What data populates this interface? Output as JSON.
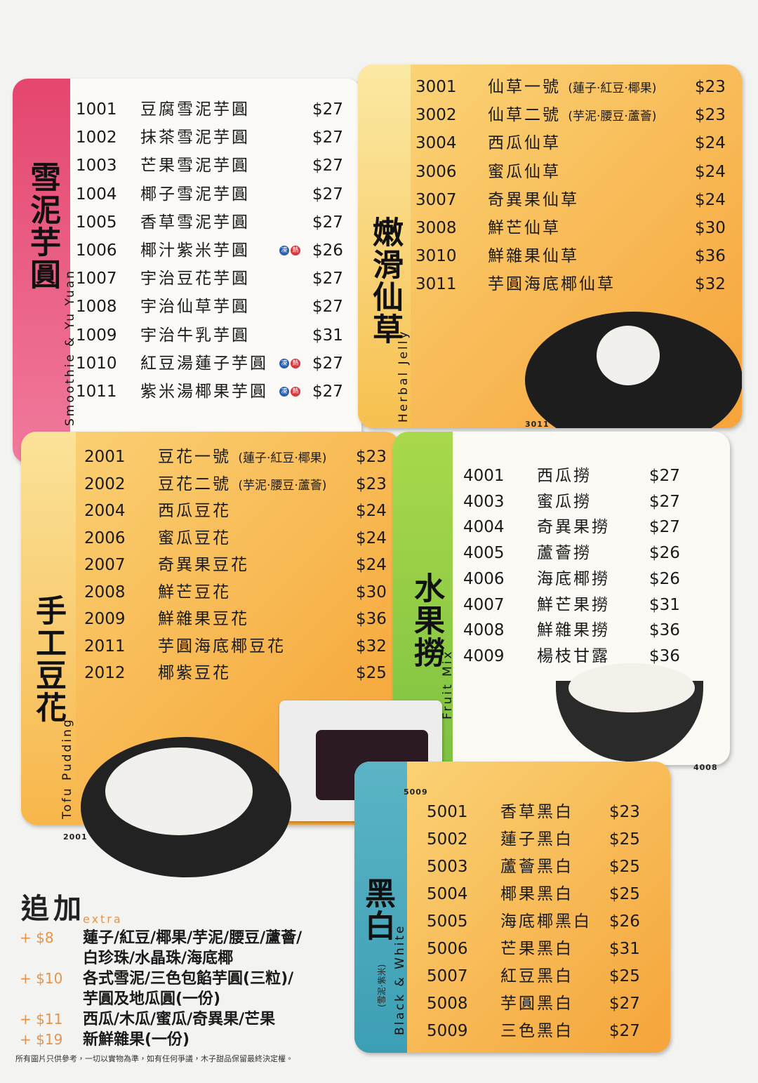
{
  "sections": [
    {
      "title": "雪泥芋圓",
      "title_en": "Smoothie & Yu Yuan",
      "items": [
        {
          "code": "1001",
          "name": "豆腐雪泥芋圓",
          "price": "$27"
        },
        {
          "code": "1002",
          "name": "抹茶雪泥芋圓",
          "price": "$27"
        },
        {
          "code": "1003",
          "name": "芒果雪泥芋圓",
          "price": "$27"
        },
        {
          "code": "1004",
          "name": "椰子雪泥芋圓",
          "price": "$27"
        },
        {
          "code": "1005",
          "name": "香草雪泥芋圓",
          "price": "$27"
        },
        {
          "code": "1006",
          "name": "椰汁紫米芋圓",
          "price": "$26",
          "badges": [
            "凍",
            "熱"
          ]
        },
        {
          "code": "1007",
          "name": "宇治豆花芋圓",
          "price": "$27"
        },
        {
          "code": "1008",
          "name": "宇治仙草芋圓",
          "price": "$27"
        },
        {
          "code": "1009",
          "name": "宇治牛乳芋圓",
          "price": "$31"
        },
        {
          "code": "1010",
          "name": "紅豆湯蓮子芋圓",
          "price": "$27",
          "badges": [
            "凍",
            "熱"
          ]
        },
        {
          "code": "1011",
          "name": "紫米湯椰果芋圓",
          "price": "$27",
          "badges": [
            "凍",
            "熱"
          ]
        }
      ]
    },
    {
      "title": "手工豆花",
      "title_en": "Tofu Pudding",
      "photo_labels": [
        "2001",
        "5009"
      ],
      "items": [
        {
          "code": "2001",
          "name": "豆花一號",
          "note": "(蓮子·紅豆·椰果)",
          "price": "$23"
        },
        {
          "code": "2002",
          "name": "豆花二號",
          "note": "(芋泥·腰豆·蘆薈)",
          "price": "$23"
        },
        {
          "code": "2004",
          "name": "西瓜豆花",
          "price": "$24"
        },
        {
          "code": "2006",
          "name": "蜜瓜豆花",
          "price": "$24"
        },
        {
          "code": "2007",
          "name": "奇異果豆花",
          "price": "$24"
        },
        {
          "code": "2008",
          "name": "鮮芒豆花",
          "price": "$30"
        },
        {
          "code": "2009",
          "name": "鮮雜果豆花",
          "price": "$36"
        },
        {
          "code": "2011",
          "name": "芋圓海底椰豆花",
          "price": "$32"
        },
        {
          "code": "2012",
          "name": "椰紫豆花",
          "price": "$25"
        }
      ]
    },
    {
      "title": "嫩滑仙草",
      "title_en": "Herbal Jelly",
      "photo_labels": [
        "3011"
      ],
      "items": [
        {
          "code": "3001",
          "name": "仙草一號",
          "note": "(蓮子·紅豆·椰果)",
          "price": "$23"
        },
        {
          "code": "3002",
          "name": "仙草二號",
          "note": "(芋泥·腰豆·蘆薈)",
          "price": "$23"
        },
        {
          "code": "3004",
          "name": "西瓜仙草",
          "price": "$24"
        },
        {
          "code": "3006",
          "name": "蜜瓜仙草",
          "price": "$24"
        },
        {
          "code": "3007",
          "name": "奇異果仙草",
          "price": "$24"
        },
        {
          "code": "3008",
          "name": "鮮芒仙草",
          "price": "$30"
        },
        {
          "code": "3010",
          "name": "鮮雜果仙草",
          "price": "$36"
        },
        {
          "code": "3011",
          "name": "芋圓海底椰仙草",
          "price": "$32"
        }
      ]
    },
    {
      "title": "水果撈",
      "title_en": "Fruit Mix",
      "photo_labels": [
        "4008"
      ],
      "items": [
        {
          "code": "4001",
          "name": "西瓜撈",
          "price": "$27"
        },
        {
          "code": "4003",
          "name": "蜜瓜撈",
          "price": "$27"
        },
        {
          "code": "4004",
          "name": "奇異果撈",
          "price": "$27"
        },
        {
          "code": "4005",
          "name": "蘆薈撈",
          "price": "$26"
        },
        {
          "code": "4006",
          "name": "海底椰撈",
          "price": "$26"
        },
        {
          "code": "4007",
          "name": "鮮芒果撈",
          "price": "$31"
        },
        {
          "code": "4008",
          "name": "鮮雜果撈",
          "price": "$36"
        },
        {
          "code": "4009",
          "name": "楊枝甘露",
          "price": "$36"
        }
      ]
    },
    {
      "title": "黑白",
      "title_en": "Black & White",
      "subtitle": "(雪泥·紫米)",
      "items": [
        {
          "code": "5001",
          "name": "香草黑白",
          "price": "$23"
        },
        {
          "code": "5002",
          "name": "蓮子黑白",
          "price": "$25"
        },
        {
          "code": "5003",
          "name": "蘆薈黑白",
          "price": "$25"
        },
        {
          "code": "5004",
          "name": "椰果黑白",
          "price": "$25"
        },
        {
          "code": "5005",
          "name": "海底椰黑白",
          "price": "$26"
        },
        {
          "code": "5006",
          "name": "芒果黑白",
          "price": "$31"
        },
        {
          "code": "5007",
          "name": "紅豆黑白",
          "price": "$25"
        },
        {
          "code": "5008",
          "name": "芋圓黑白",
          "price": "$27"
        },
        {
          "code": "5009",
          "name": "三色黑白",
          "price": "$27"
        }
      ]
    }
  ],
  "extras": {
    "title": "追加",
    "title_en": "extra",
    "items": [
      {
        "price": "+ $8",
        "lines": [
          "蓮子/紅豆/椰果/芋泥/腰豆/蘆薈/",
          "白珍珠/水晶珠/海底椰"
        ]
      },
      {
        "price": "+ $10",
        "lines": [
          "各式雪泥/三色包餡芋圓(三粒)/",
          "芋圓及地瓜圓(一份)"
        ]
      },
      {
        "price": "+ $11",
        "lines": [
          "西瓜/木瓜/蜜瓜/奇異果/芒果"
        ]
      },
      {
        "price": "+ $19",
        "lines": [
          "新鮮雜果(一份)"
        ]
      }
    ]
  },
  "footer": "所有圖片只供參考，一切以實物為準，如有任何爭議，木子甜品保留最終決定權。"
}
